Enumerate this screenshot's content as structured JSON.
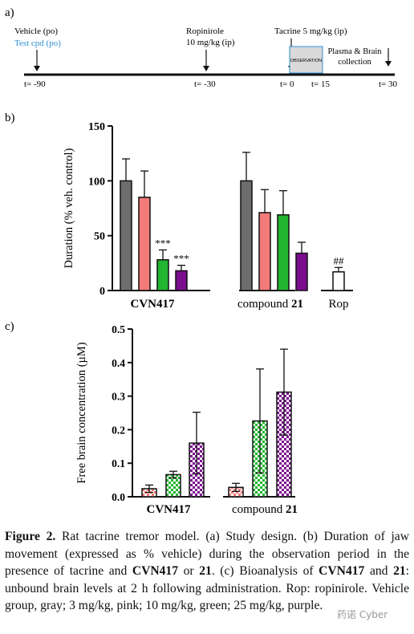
{
  "panel_a": {
    "label": "a)",
    "events": [
      {
        "text_lines": [
          "Vehicle (po)"
        ],
        "sub": "Test cpd (po)",
        "time": "t= -90"
      },
      {
        "text_lines": [
          "Ropinirole",
          "10 mg/kg (ip)"
        ],
        "time": "t= -30"
      },
      {
        "text_lines": [
          "Tacrine 5 mg/kg (ip)"
        ],
        "time": "t= 0"
      },
      {
        "text_lines": [
          "Plasma & Brain",
          "collection"
        ],
        "time": "t= 30"
      }
    ],
    "observation_label": "OBSERVATION",
    "t15": "t= 15"
  },
  "chart_data": [
    {
      "panel": "b)",
      "type": "bar",
      "ylabel": "Duration (% veh. control)",
      "ylim": [
        0,
        150
      ],
      "yticks": [
        "0",
        "50",
        "100",
        "150"
      ],
      "groups": [
        {
          "label_bold": "CVN417",
          "label_plain": "",
          "bars": [
            {
              "dose": "Vehicle",
              "value": 100,
              "err": 20,
              "color": "#6e6e6e"
            },
            {
              "dose": "3 mg/kg",
              "value": 85,
              "err": 24,
              "color": "#f27a78"
            },
            {
              "dose": "10 mg/kg",
              "value": 28,
              "err": 9,
              "color": "#21b530",
              "sig": "***"
            },
            {
              "dose": "25 mg/kg",
              "value": 18,
              "err": 5,
              "color": "#7a0d8e",
              "sig": "***"
            }
          ]
        },
        {
          "label_bold": "21",
          "label_plain": "compound ",
          "bars": [
            {
              "dose": "Vehicle",
              "value": 100,
              "err": 26,
              "color": "#6e6e6e"
            },
            {
              "dose": "3 mg/kg",
              "value": 71,
              "err": 21,
              "color": "#f27a78"
            },
            {
              "dose": "10 mg/kg",
              "value": 69,
              "err": 22,
              "color": "#21b530"
            },
            {
              "dose": "25 mg/kg",
              "value": 34,
              "err": 10,
              "color": "#7a0d8e"
            }
          ]
        },
        {
          "label_bold": "",
          "label_plain": "Rop",
          "bars": [
            {
              "dose": "Ropinirole",
              "value": 17,
              "err": 4,
              "color": "#ffffff",
              "sig": "##"
            }
          ]
        }
      ]
    },
    {
      "panel": "c)",
      "type": "bar",
      "ylabel": "Free brain concentration (µM)",
      "ylim": [
        0,
        0.5
      ],
      "yticks": [
        "0.0",
        "0.1",
        "0.2",
        "0.3",
        "0.4",
        "0.5"
      ],
      "groups": [
        {
          "label_bold": "CVN417",
          "label_plain": "",
          "bars": [
            {
              "dose": "3 mg/kg",
              "value": 0.024,
              "err": 0.011,
              "color": "#f27a78"
            },
            {
              "dose": "10 mg/kg",
              "value": 0.066,
              "err": 0.01,
              "color": "#21b530"
            },
            {
              "dose": "25 mg/kg",
              "value": 0.16,
              "err": 0.092,
              "color": "#7a0d8e"
            }
          ]
        },
        {
          "label_bold": "21",
          "label_plain": "compound ",
          "bars": [
            {
              "dose": "3 mg/kg",
              "value": 0.028,
              "err": 0.012,
              "color": "#f27a78"
            },
            {
              "dose": "10 mg/kg",
              "value": 0.226,
              "err": 0.155,
              "color": "#21b530"
            },
            {
              "dose": "25 mg/kg",
              "value": 0.312,
              "err": 0.128,
              "color": "#7a0d8e"
            }
          ]
        }
      ]
    }
  ],
  "caption": {
    "figure_label": "Figure 2.",
    "t1": " Rat tacrine tremor model. (a) Study design. (b) Duration of jaw movement (expressed as % vehicle) during the observation period in the presence of tacrine and ",
    "b1": "CVN417",
    "t2": " or ",
    "b2": "21",
    "t3": ". (c) Bioanalysis of ",
    "b3": "CVN417",
    "t4": " and ",
    "b4": "21",
    "t5": ": unbound brain levels at 2 h following administration. Rop: ropinirole. Vehicle group, gray; 3 mg/kg, pink; 10 mg/kg, green; 25 mg/kg, purple."
  },
  "watermark": "药诺 Cyber"
}
